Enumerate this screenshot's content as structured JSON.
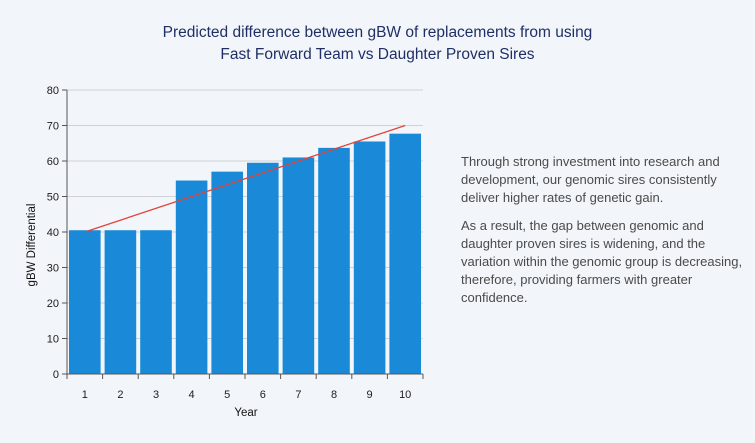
{
  "chart_data": {
    "type": "bar",
    "title_lines": [
      "Predicted difference between gBW of replacements from using",
      "Fast Forward Team vs Daughter Proven Sires"
    ],
    "xlabel": "Year",
    "ylabel": "gBW Differential",
    "categories": [
      "1",
      "2",
      "3",
      "4",
      "5",
      "6",
      "7",
      "8",
      "9",
      "10"
    ],
    "values": [
      40.5,
      40.5,
      40.5,
      54.5,
      57,
      59.5,
      61,
      63.7,
      65.5,
      67.7
    ],
    "ylim": [
      0,
      80
    ],
    "yticks": [
      "0",
      "10",
      "20",
      "30",
      "40",
      "50",
      "60",
      "70",
      "80"
    ],
    "trendline": {
      "start": 40,
      "end": 70
    },
    "grid": true,
    "bar_color": "#1a8ad8",
    "trend_color": "#e0443a"
  },
  "description": {
    "paragraphs": [
      "Through strong investment into research and development, our genomic sires consistently deliver higher rates of genetic gain.",
      "As a result, the gap between genomic and daughter proven sires is widening, and the variation within the genomic group is decreasing, therefore, providing farmers with greater confidence."
    ]
  }
}
